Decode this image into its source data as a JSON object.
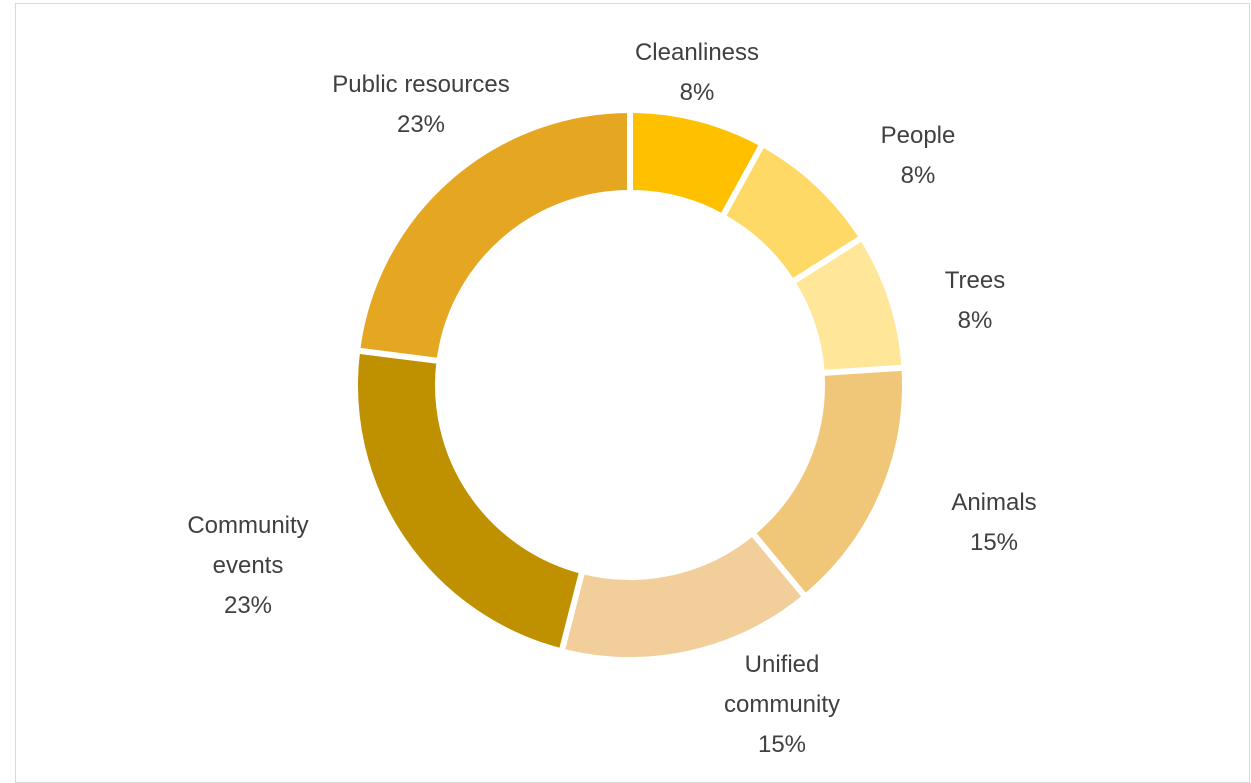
{
  "chart_data": {
    "type": "pie",
    "variant": "donut",
    "title": "",
    "slices": [
      {
        "label": "Cleanliness",
        "value": 8,
        "value_label": "8%",
        "color": "#FFC000"
      },
      {
        "label": "People",
        "value": 8,
        "value_label": "8%",
        "color": "#FFD966"
      },
      {
        "label": "Trees",
        "value": 8,
        "value_label": "8%",
        "color": "#FFE699"
      },
      {
        "label": "Animals",
        "value": 15,
        "value_label": "15%",
        "color": "#F0C679"
      },
      {
        "label": "Unified community",
        "value": 15,
        "value_label": "15%",
        "color": "#F2CF9A"
      },
      {
        "label": "Community events",
        "value": 23,
        "value_label": "23%",
        "color": "#BF9000"
      },
      {
        "label": "Public resources",
        "value": 23,
        "value_label": "23%",
        "color": "#E5A621"
      }
    ],
    "legend": "none",
    "data_labels": "outside"
  }
}
